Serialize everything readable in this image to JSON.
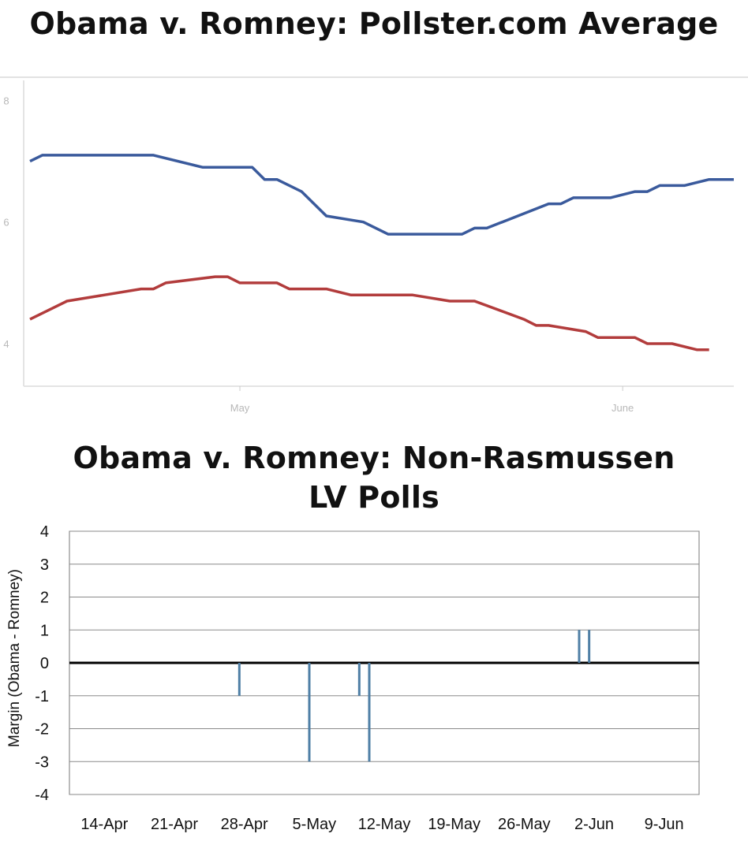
{
  "chart_data": [
    {
      "type": "line",
      "title": "Obama v. Romney: Pollster.com Average",
      "y_ticks": [
        "4",
        "6",
        "8"
      ],
      "ylim": [
        3.3,
        8.2
      ],
      "x_ticks": [
        {
          "label": "May",
          "x": "2012-05-01"
        },
        {
          "label": "June",
          "x": "2012-06-01"
        }
      ],
      "xlim": [
        "2012-04-14",
        "2012-06-10"
      ],
      "grid": false,
      "series": [
        {
          "color": "#3a5a9c",
          "points": [
            [
              "2012-04-14",
              7.0
            ],
            [
              "2012-04-15",
              7.1
            ],
            [
              "2012-04-23",
              7.1
            ],
            [
              "2012-04-24",
              7.1
            ],
            [
              "2012-04-28",
              6.9
            ],
            [
              "2012-05-02",
              6.9
            ],
            [
              "2012-05-03",
              6.7
            ],
            [
              "2012-05-04",
              6.7
            ],
            [
              "2012-05-06",
              6.5
            ],
            [
              "2012-05-08",
              6.1
            ],
            [
              "2012-05-11",
              6.0
            ],
            [
              "2012-05-13",
              5.8
            ],
            [
              "2012-05-19",
              5.8
            ],
            [
              "2012-05-20",
              5.9
            ],
            [
              "2012-05-21",
              5.9
            ],
            [
              "2012-05-26",
              6.3
            ],
            [
              "2012-05-27",
              6.3
            ],
            [
              "2012-05-28",
              6.4
            ],
            [
              "2012-05-31",
              6.4
            ],
            [
              "2012-06-02",
              6.5
            ],
            [
              "2012-06-03",
              6.5
            ],
            [
              "2012-06-04",
              6.6
            ],
            [
              "2012-06-06",
              6.6
            ],
            [
              "2012-06-08",
              6.7
            ],
            [
              "2012-06-10",
              6.7
            ]
          ]
        },
        {
          "color": "#b23c3c",
          "points": [
            [
              "2012-04-14",
              4.4
            ],
            [
              "2012-04-16",
              4.6
            ],
            [
              "2012-04-17",
              4.7
            ],
            [
              "2012-04-20",
              4.8
            ],
            [
              "2012-04-23",
              4.9
            ],
            [
              "2012-04-24",
              4.9
            ],
            [
              "2012-04-25",
              5.0
            ],
            [
              "2012-04-29",
              5.1
            ],
            [
              "2012-04-30",
              5.1
            ],
            [
              "2012-05-01",
              5.0
            ],
            [
              "2012-05-04",
              5.0
            ],
            [
              "2012-05-05",
              4.9
            ],
            [
              "2012-05-08",
              4.9
            ],
            [
              "2012-05-10",
              4.8
            ],
            [
              "2012-05-15",
              4.8
            ],
            [
              "2012-05-18",
              4.7
            ],
            [
              "2012-05-20",
              4.7
            ],
            [
              "2012-05-24",
              4.4
            ],
            [
              "2012-05-25",
              4.3
            ],
            [
              "2012-05-26",
              4.3
            ],
            [
              "2012-05-29",
              4.2
            ],
            [
              "2012-05-30",
              4.1
            ],
            [
              "2012-06-02",
              4.1
            ],
            [
              "2012-06-03",
              4.0
            ],
            [
              "2012-06-05",
              4.0
            ],
            [
              "2012-06-07",
              3.9
            ],
            [
              "2012-06-08",
              3.9
            ]
          ]
        }
      ]
    },
    {
      "type": "bar",
      "title": "Obama v. Romney: Non-Rasmussen LV Polls",
      "ylabel": "Margin (Obama - Romney)",
      "xlabel": "",
      "ylim": [
        -4,
        4
      ],
      "y_ticks": [
        "4",
        "3",
        "2",
        "1",
        "0",
        "-1",
        "-2",
        "-3",
        "-4"
      ],
      "x_ticks": [
        "14-Apr",
        "21-Apr",
        "28-Apr",
        "5-May",
        "12-May",
        "19-May",
        "26-May",
        "2-Jun",
        "9-Jun"
      ],
      "grid": true,
      "bar_color": "#4f7fa6",
      "bars": [
        {
          "x": "2012-05-01",
          "value": -1
        },
        {
          "x": "2012-05-08",
          "value": -3
        },
        {
          "x": "2012-05-13",
          "value": -1
        },
        {
          "x": "2012-05-14",
          "value": -3
        },
        {
          "x": "2012-06-04",
          "value": 1
        },
        {
          "x": "2012-06-05",
          "value": 1
        }
      ]
    }
  ]
}
